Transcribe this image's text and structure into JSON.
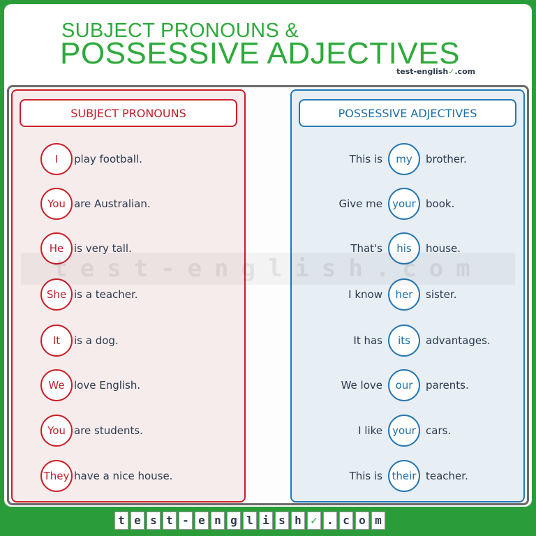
{
  "title": {
    "line1": "SUBJECT PRONOUNS &",
    "line2": "POSSESSIVE ADJECTIVES"
  },
  "brand": {
    "small_text": "test-english",
    "small_suffix": ".com",
    "watermark": "test-english.com",
    "footer_chars": [
      "t",
      "e",
      "s",
      "t",
      "-",
      "e",
      "n",
      "g",
      "l",
      "i",
      "s",
      "h",
      "✓",
      ".",
      "c",
      "o",
      "m"
    ]
  },
  "subject_pronouns": {
    "heading": "SUBJECT PRONOUNS",
    "rows": [
      {
        "pronoun": "I",
        "rest": "play football."
      },
      {
        "pronoun": "You",
        "rest": "are Australian."
      },
      {
        "pronoun": "He",
        "rest": "is very tall."
      },
      {
        "pronoun": "She",
        "rest": "is a teacher."
      },
      {
        "pronoun": "It",
        "rest": "is a dog."
      },
      {
        "pronoun": "We",
        "rest": "love English."
      },
      {
        "pronoun": "You",
        "rest": "are students."
      },
      {
        "pronoun": "They",
        "rest": "have a nice house."
      }
    ]
  },
  "possessive_adjectives": {
    "heading": "POSSESSIVE ADJECTIVES",
    "rows": [
      {
        "before": "This is",
        "word": "my",
        "after": "brother."
      },
      {
        "before": "Give me",
        "word": "your",
        "after": "book."
      },
      {
        "before": "That's",
        "word": "his",
        "after": "house."
      },
      {
        "before": "I know",
        "word": "her",
        "after": "sister."
      },
      {
        "before": "It has",
        "word": "its",
        "after": "advantages."
      },
      {
        "before": "We love",
        "word": "our",
        "after": "parents."
      },
      {
        "before": "I like",
        "word": "your",
        "after": "cars."
      },
      {
        "before": "This is",
        "word": "their",
        "after": "teacher."
      }
    ]
  },
  "colors": {
    "green": "#2eaa3c",
    "red": "#c8202a",
    "blue": "#2577b4"
  }
}
